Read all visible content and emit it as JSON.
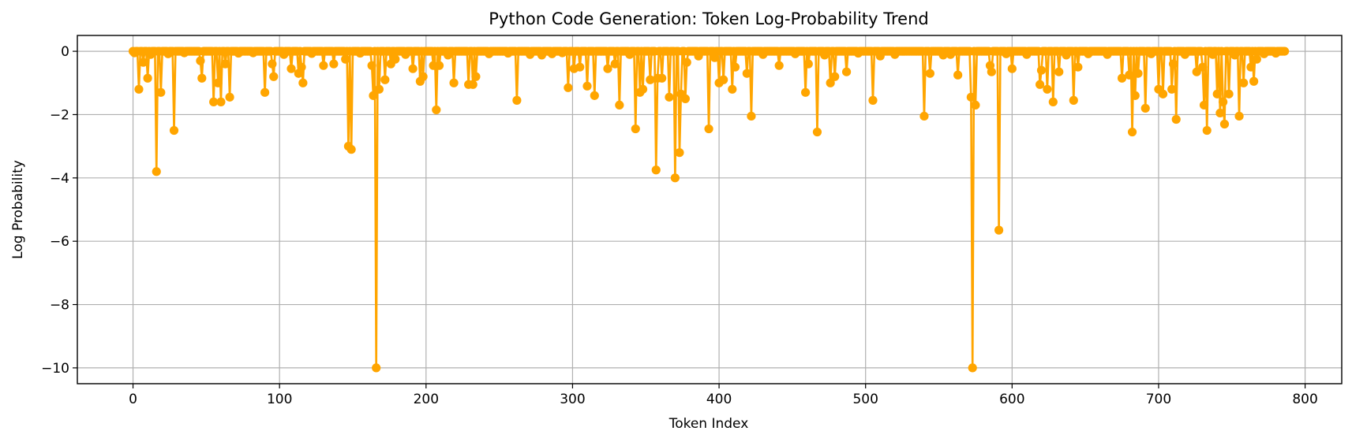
{
  "chart_data": {
    "type": "line",
    "title": "Python Code Generation: Token Log-Probability Trend",
    "xlabel": "Token Index",
    "ylabel": "Log Probability",
    "xlim": [
      -38,
      825
    ],
    "ylim": [
      -10.5,
      0.5
    ],
    "xticks": [
      0,
      100,
      200,
      300,
      400,
      500,
      600,
      700,
      800
    ],
    "yticks": [
      0,
      -2,
      -4,
      -6,
      -8,
      -10
    ],
    "grid": true,
    "legend": "none",
    "marker": "circle",
    "series": [
      {
        "color": "#FFA500",
        "n_points": 787,
        "baseline": 0,
        "dips": [
          [
            1,
            -0.05
          ],
          [
            4,
            -1.2
          ],
          [
            7,
            -0.35
          ],
          [
            10,
            -0.85
          ],
          [
            16,
            -3.8
          ],
          [
            19,
            -1.3
          ],
          [
            28,
            -2.5
          ],
          [
            46,
            -0.3
          ],
          [
            47,
            -0.85
          ],
          [
            55,
            -1.6
          ],
          [
            58,
            -1.0
          ],
          [
            60,
            -1.6
          ],
          [
            63,
            -0.4
          ],
          [
            66,
            -1.45
          ],
          [
            90,
            -1.3
          ],
          [
            95,
            -0.4
          ],
          [
            96,
            -0.8
          ],
          [
            108,
            -0.55
          ],
          [
            113,
            -0.7
          ],
          [
            115,
            -0.5
          ],
          [
            116,
            -1.0
          ],
          [
            130,
            -0.45
          ],
          [
            137,
            -0.4
          ],
          [
            145,
            -0.25
          ],
          [
            147,
            -3.0
          ],
          [
            149,
            -3.1
          ],
          [
            163,
            -0.45
          ],
          [
            164,
            -1.4
          ],
          [
            166,
            -10.0
          ],
          [
            168,
            -1.2
          ],
          [
            172,
            -0.9
          ],
          [
            176,
            -0.4
          ],
          [
            179,
            -0.25
          ],
          [
            191,
            -0.55
          ],
          [
            196,
            -0.95
          ],
          [
            198,
            -0.8
          ],
          [
            205,
            -0.45
          ],
          [
            207,
            -1.85
          ],
          [
            209,
            -0.45
          ],
          [
            219,
            -1.0
          ],
          [
            229,
            -1.05
          ],
          [
            232,
            -1.05
          ],
          [
            234,
            -0.8
          ],
          [
            262,
            -1.55
          ],
          [
            297,
            -1.15
          ],
          [
            301,
            -0.55
          ],
          [
            305,
            -0.5
          ],
          [
            310,
            -1.1
          ],
          [
            315,
            -1.4
          ],
          [
            324,
            -0.55
          ],
          [
            329,
            -0.4
          ],
          [
            332,
            -1.7
          ],
          [
            343,
            -2.45
          ],
          [
            346,
            -1.3
          ],
          [
            348,
            -1.2
          ],
          [
            353,
            -0.9
          ],
          [
            357,
            -3.75
          ],
          [
            358,
            -0.85
          ],
          [
            361,
            -0.85
          ],
          [
            366,
            -1.45
          ],
          [
            370,
            -4.0
          ],
          [
            373,
            -3.2
          ],
          [
            374,
            -1.35
          ],
          [
            377,
            -1.5
          ],
          [
            378,
            -0.35
          ],
          [
            393,
            -2.45
          ],
          [
            400,
            -1.0
          ],
          [
            403,
            -0.9
          ],
          [
            409,
            -1.2
          ],
          [
            411,
            -0.5
          ],
          [
            419,
            -0.7
          ],
          [
            422,
            -2.05
          ],
          [
            441,
            -0.45
          ],
          [
            459,
            -1.3
          ],
          [
            461,
            -0.4
          ],
          [
            467,
            -2.55
          ],
          [
            476,
            -1.0
          ],
          [
            479,
            -0.8
          ],
          [
            487,
            -0.65
          ],
          [
            505,
            -1.55
          ],
          [
            540,
            -2.05
          ],
          [
            544,
            -0.7
          ],
          [
            563,
            -0.75
          ],
          [
            572,
            -1.45
          ],
          [
            573,
            -10.0
          ],
          [
            575,
            -1.7
          ],
          [
            585,
            -0.45
          ],
          [
            586,
            -0.65
          ],
          [
            591,
            -5.65
          ],
          [
            600,
            -0.55
          ],
          [
            619,
            -1.05
          ],
          [
            620,
            -0.6
          ],
          [
            624,
            -1.2
          ],
          [
            628,
            -1.6
          ],
          [
            632,
            -0.65
          ],
          [
            642,
            -1.55
          ],
          [
            645,
            -0.5
          ],
          [
            675,
            -0.85
          ],
          [
            680,
            -0.75
          ],
          [
            682,
            -2.55
          ],
          [
            684,
            -1.4
          ],
          [
            686,
            -0.7
          ],
          [
            691,
            -1.8
          ],
          [
            700,
            -1.2
          ],
          [
            703,
            -1.35
          ],
          [
            709,
            -1.2
          ],
          [
            710,
            -0.4
          ],
          [
            712,
            -2.15
          ],
          [
            726,
            -0.65
          ],
          [
            730,
            -0.5
          ],
          [
            731,
            -1.7
          ],
          [
            733,
            -2.5
          ],
          [
            740,
            -1.35
          ],
          [
            742,
            -1.95
          ],
          [
            744,
            -1.6
          ],
          [
            745,
            -2.3
          ],
          [
            748,
            -1.35
          ],
          [
            755,
            -2.05
          ],
          [
            758,
            -1.0
          ],
          [
            763,
            -0.5
          ],
          [
            765,
            -0.95
          ],
          [
            767,
            -0.25
          ]
        ],
        "small_dips": [
          [
            12,
            -0.1
          ],
          [
            24,
            -0.08
          ],
          [
            35,
            -0.05
          ],
          [
            72,
            -0.06
          ],
          [
            82,
            -0.05
          ],
          [
            103,
            -0.1
          ],
          [
            122,
            -0.07
          ],
          [
            155,
            -0.06
          ],
          [
            186,
            -0.1
          ],
          [
            215,
            -0.12
          ],
          [
            243,
            -0.08
          ],
          [
            256,
            -0.06
          ],
          [
            271,
            -0.1
          ],
          [
            279,
            -0.12
          ],
          [
            286,
            -0.08
          ],
          [
            293,
            -0.05
          ],
          [
            339,
            -0.1
          ],
          [
            386,
            -0.15
          ],
          [
            397,
            -0.2
          ],
          [
            430,
            -0.1
          ],
          [
            452,
            -0.08
          ],
          [
            472,
            -0.12
          ],
          [
            495,
            -0.06
          ],
          [
            510,
            -0.15
          ],
          [
            520,
            -0.1
          ],
          [
            553,
            -0.12
          ],
          [
            558,
            -0.1
          ],
          [
            596,
            -0.08
          ],
          [
            610,
            -0.1
          ],
          [
            637,
            -0.12
          ],
          [
            652,
            -0.08
          ],
          [
            665,
            -0.1
          ],
          [
            695,
            -0.08
          ],
          [
            718,
            -0.1
          ],
          [
            737,
            -0.1
          ],
          [
            752,
            -0.12
          ],
          [
            772,
            -0.08
          ],
          [
            780,
            -0.06
          ]
        ]
      }
    ]
  }
}
